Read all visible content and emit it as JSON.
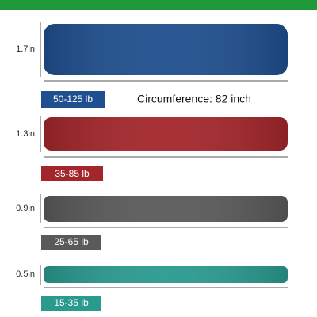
{
  "circumference": "Circumference: 82 inch",
  "bands": [
    {
      "thickness": "1.7in",
      "resistance": "50-125 lb"
    },
    {
      "thickness": "1.3in",
      "resistance": "35-85 lb"
    },
    {
      "thickness": "0.9in",
      "resistance": "25-65 lb"
    },
    {
      "thickness": "0.5in",
      "resistance": "15-35 lb"
    }
  ]
}
